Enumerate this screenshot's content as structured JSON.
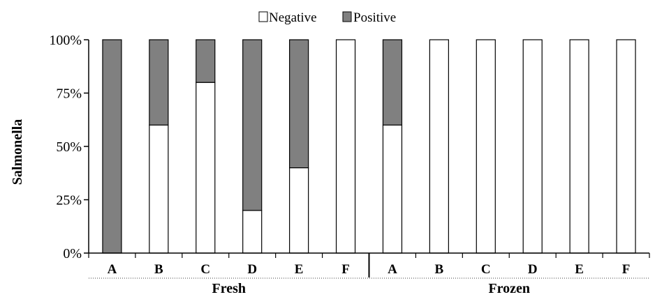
{
  "chart_data": {
    "type": "bar",
    "stacked": true,
    "percent": true,
    "ylabel": "Salmonella",
    "xlabel": "",
    "ylim": [
      0,
      100
    ],
    "yticks": [
      "0%",
      "25%",
      "50%",
      "75%",
      "100%"
    ],
    "ytick_values": [
      0,
      25,
      50,
      75,
      100
    ],
    "groups": [
      {
        "label": "Fresh",
        "categories": [
          "A",
          "B",
          "C",
          "D",
          "E",
          "F"
        ]
      },
      {
        "label": "Frozen",
        "categories": [
          "A",
          "B",
          "C",
          "D",
          "E",
          "F"
        ]
      }
    ],
    "series": [
      {
        "name": "Negative",
        "color": "#ffffff",
        "values": [
          0,
          60,
          80,
          20,
          40,
          100,
          60,
          100,
          100,
          100,
          100,
          100
        ]
      },
      {
        "name": "Positive",
        "color": "#808080",
        "values": [
          100,
          40,
          20,
          80,
          60,
          0,
          40,
          0,
          0,
          0,
          0,
          0
        ]
      }
    ],
    "legend_position": "top-center",
    "grid": false
  }
}
